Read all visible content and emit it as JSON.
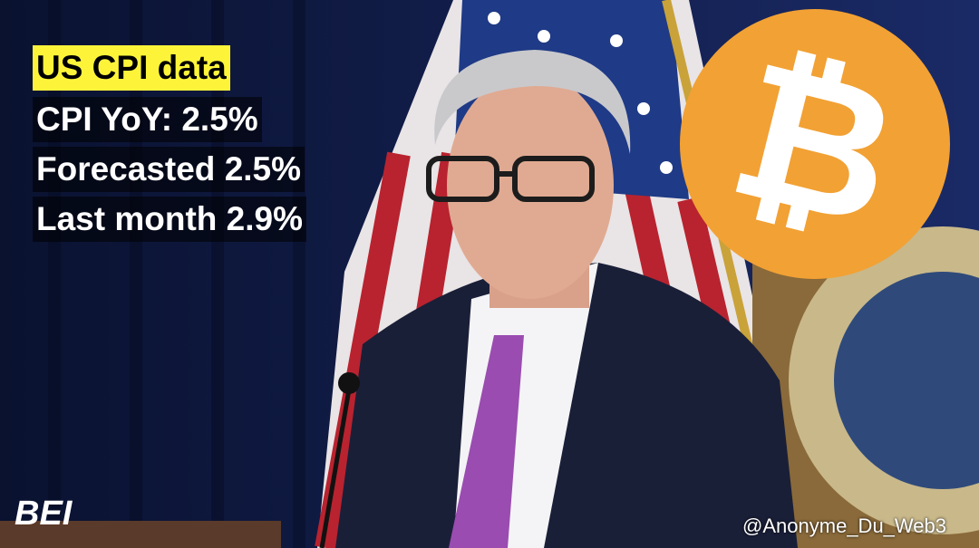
{
  "headline": {
    "title": "US CPI data",
    "lines": [
      "CPI YoY: 2.5%",
      "Forecasted 2.5%",
      "Last month 2.9%"
    ]
  },
  "bitcoin_logo": {
    "symbol": "₿"
  },
  "brand_logo": "BEI",
  "watermark": "@Anonyme_Du_Web3"
}
